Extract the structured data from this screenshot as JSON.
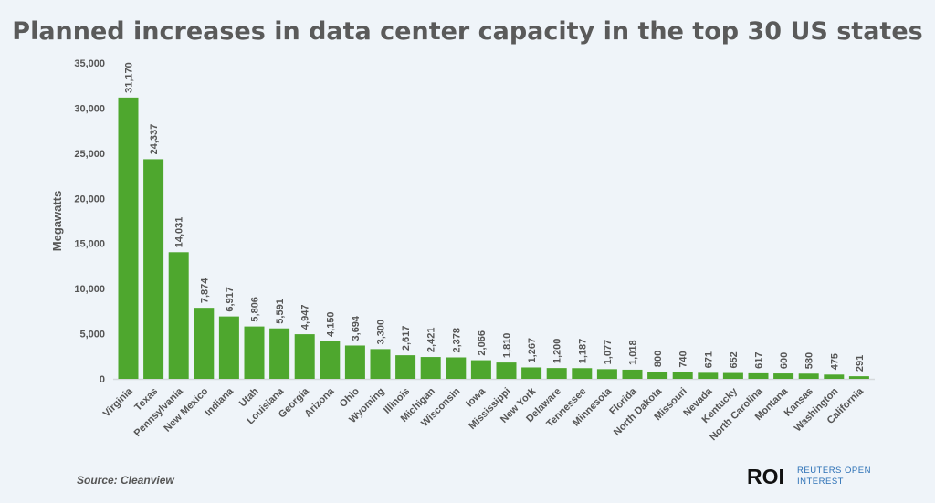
{
  "chart_data": {
    "type": "bar",
    "title": "Planned increases in data center capacity in the top 30 US states",
    "xlabel": "",
    "ylabel": "Megawatts",
    "ylim": [
      0,
      35000
    ],
    "yticks": [
      "0",
      "5,000",
      "10,000",
      "15,000",
      "20,000",
      "25,000",
      "30,000",
      "35,000"
    ],
    "grid": false,
    "bar_color": "#4ea72e",
    "categories": [
      "Virginia",
      "Texas",
      "Pennsylvania",
      "New Mexico",
      "Indiana",
      "Utah",
      "Louisiana",
      "Georgia",
      "Arizona",
      "Ohio",
      "Wyoming",
      "Illinois",
      "Michigan",
      "Wisconsin",
      "Iowa",
      "Mississippi",
      "New York",
      "Delaware",
      "Tennessee",
      "Minnesota",
      "Florida",
      "North Dakota",
      "Missouri",
      "Nevada",
      "Kentucky",
      "North Carolina",
      "Montana",
      "Kansas",
      "Washington",
      "California"
    ],
    "values": [
      31170,
      24337,
      14031,
      7874,
      6917,
      5806,
      5591,
      4947,
      4150,
      3694,
      3300,
      2617,
      2421,
      2378,
      2066,
      1810,
      1267,
      1200,
      1187,
      1077,
      1018,
      800,
      740,
      671,
      652,
      617,
      600,
      580,
      475,
      291
    ],
    "data_labels": [
      "31,170",
      "24,337",
      "14,031",
      "7,874",
      "6,917",
      "5,806",
      "5,591",
      "4,947",
      "4,150",
      "3,694",
      "3,300",
      "2,617",
      "2,421",
      "2,378",
      "2,066",
      "1,810",
      "1,267",
      "1,200",
      "1,187",
      "1,077",
      "1,018",
      "800",
      "740",
      "671",
      "652",
      "617",
      "600",
      "580",
      "475",
      "291"
    ]
  },
  "source": "Source:  Cleanview",
  "logo": {
    "mark": "ROI",
    "line1": "REUTERS OPEN",
    "line2": "INTEREST",
    "color": "#2a6fb5"
  }
}
